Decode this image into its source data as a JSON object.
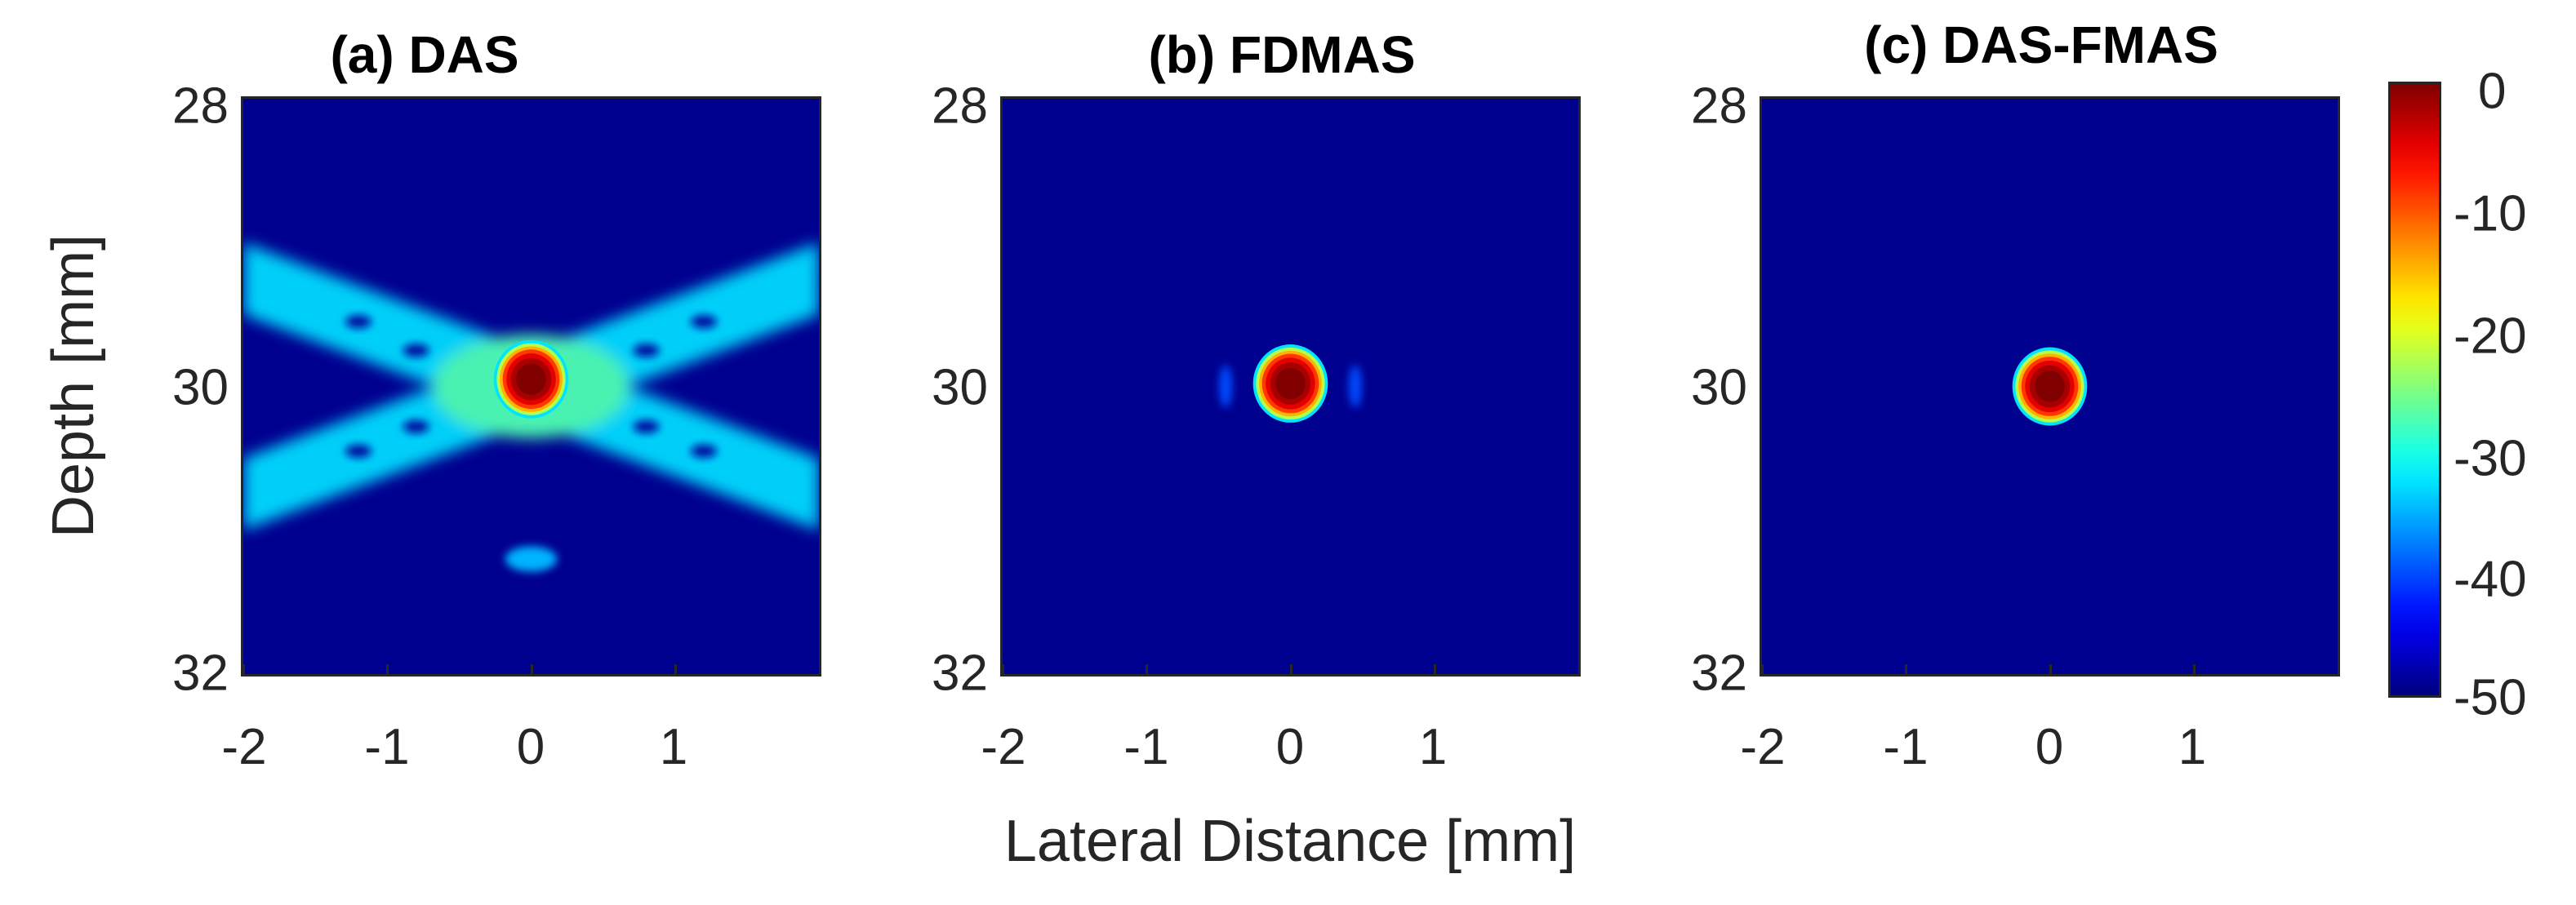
{
  "chart_data": [
    {
      "type": "heatmap",
      "title": "(a) DAS",
      "xlim": [
        -2,
        2
      ],
      "ylim": [
        28,
        32
      ],
      "x_ticks": [
        "-2",
        "-1",
        "0",
        "1"
      ],
      "y_ticks": [
        "28",
        "30",
        "32"
      ],
      "clim": [
        -50,
        0
      ],
      "features": [
        {
          "kind": "main_lobe",
          "x": 0,
          "y": 29.95,
          "level_db": 0
        },
        {
          "kind": "side_lobe_x_pattern",
          "level_db": -33
        },
        {
          "kind": "secondary_lobe",
          "x": 0,
          "y": 31.2,
          "level_db": -35
        }
      ]
    },
    {
      "type": "heatmap",
      "title": "(b) FDMAS",
      "xlim": [
        -2,
        2
      ],
      "ylim": [
        28,
        32
      ],
      "x_ticks": [
        "-2",
        "-1",
        "0",
        "1"
      ],
      "y_ticks": [
        "28",
        "30",
        "32"
      ],
      "clim": [
        -50,
        0
      ],
      "features": [
        {
          "kind": "main_lobe",
          "x": 0,
          "y": 29.98,
          "level_db": 0
        },
        {
          "kind": "side_lobe",
          "x": -0.45,
          "y": 30.0,
          "level_db": -40
        },
        {
          "kind": "side_lobe",
          "x": 0.45,
          "y": 30.0,
          "level_db": -40
        }
      ]
    },
    {
      "type": "heatmap",
      "title": "(c) DAS-FMAS",
      "xlim": [
        -2,
        2
      ],
      "ylim": [
        28,
        32
      ],
      "x_ticks": [
        "-2",
        "-1",
        "0",
        "1"
      ],
      "y_ticks": [
        "28",
        "30",
        "32"
      ],
      "clim": [
        -50,
        0
      ],
      "features": [
        {
          "kind": "main_lobe",
          "x": 0,
          "y": 30.0,
          "level_db": 0
        }
      ]
    }
  ],
  "labels": {
    "ylabel": "Depth [mm]",
    "xlabel": "Lateral Distance [mm]"
  },
  "colorbar": {
    "colormap": "jet",
    "ticks": [
      "0",
      "-10",
      "-20",
      "-30",
      "-40",
      "-50"
    ],
    "background_color": "#00008f"
  }
}
